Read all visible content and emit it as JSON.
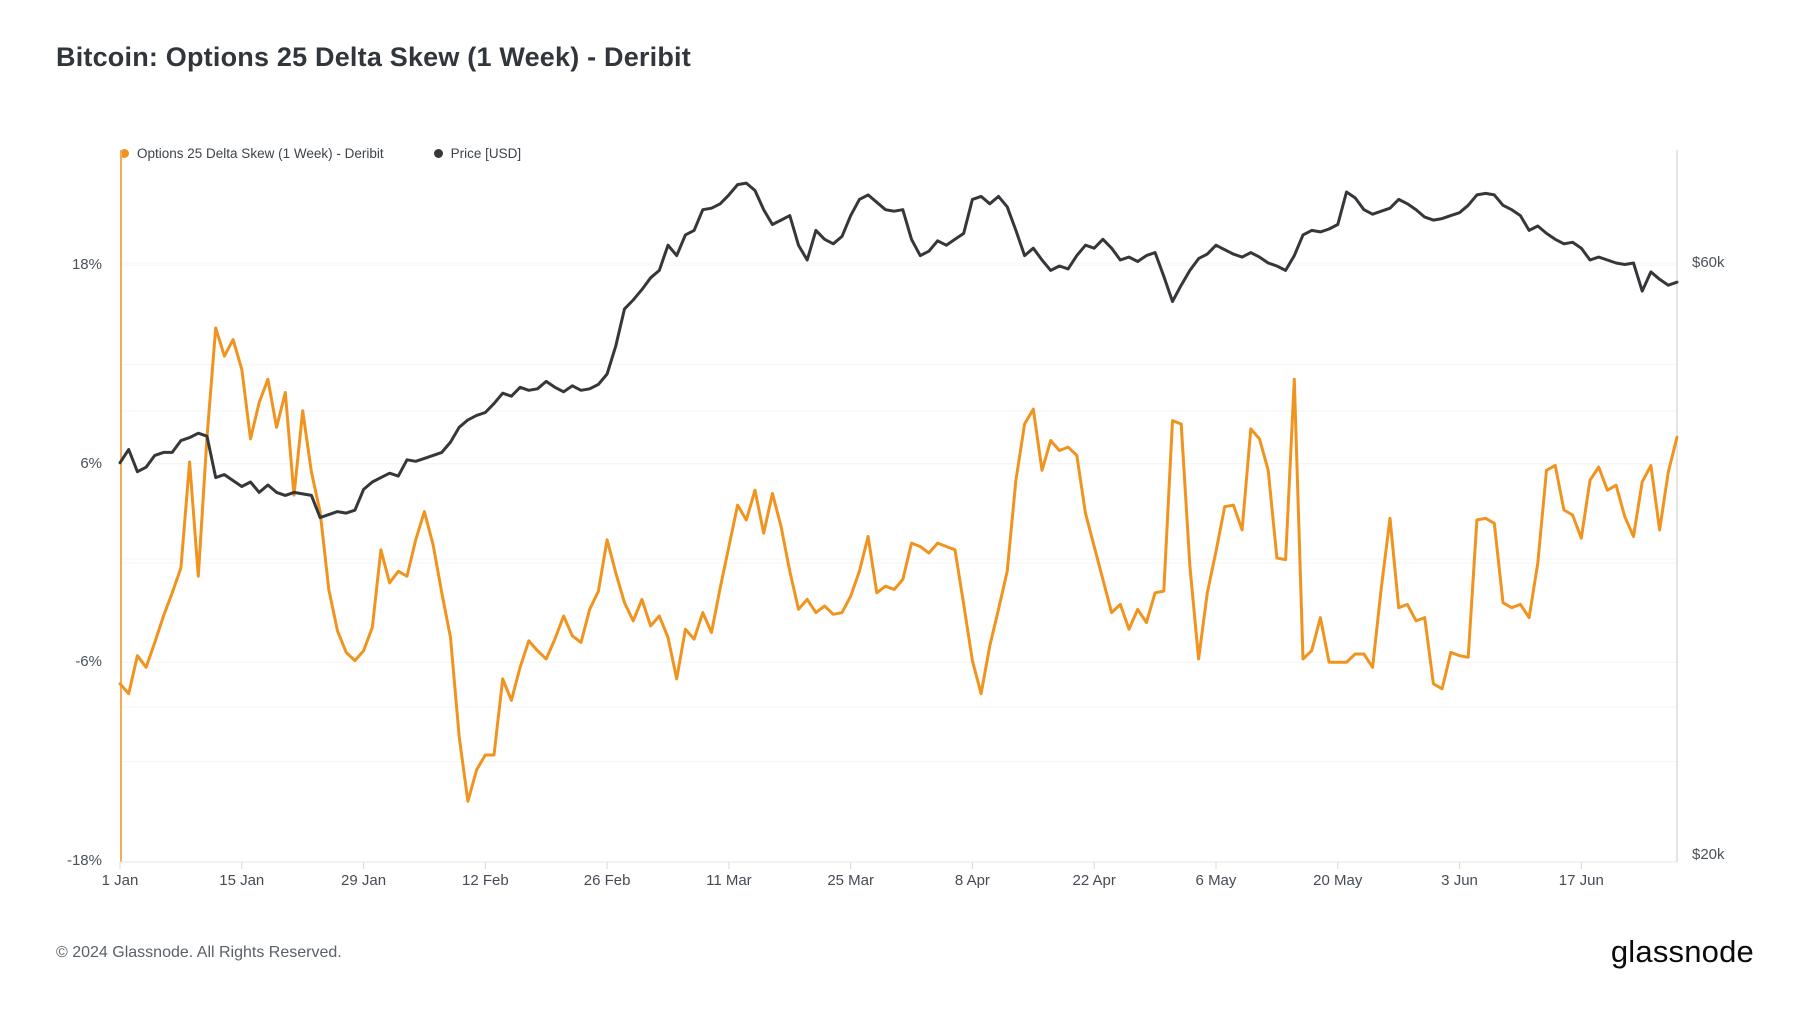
{
  "header": {
    "title": "Bitcoin: Options 25 Delta Skew (1 Week) - Deribit"
  },
  "legend": {
    "items": [
      {
        "label": "Options 25 Delta Skew (1 Week) - Deribit",
        "color": "#F0941F"
      },
      {
        "label": "Price [USD]",
        "color": "#35373B"
      }
    ]
  },
  "footer": {
    "copyright": "© 2024 Glassnode. All Rights Reserved.",
    "brand": "glassnode"
  },
  "colors": {
    "skew_line": "#F0941F",
    "price_line": "#35373B",
    "left_axis_line": "#F5A959",
    "right_axis_line": "#CBCBD1",
    "bottom_axis_line": "#E7E7EB",
    "tick_mark": "#D9D9DE",
    "gridline": "#F4F4F6",
    "background": "#FFFFFF"
  },
  "chart_data": {
    "type": "line",
    "title": "Bitcoin: Options 25 Delta Skew (1 Week) - Deribit",
    "cadence": "daily",
    "start_date": "1 Jan 2024",
    "end_date": "28 Jun 2024",
    "grid": true,
    "legend_position": "top-left",
    "x_ticks": {
      "labels": [
        "1 Jan",
        "15 Jan",
        "29 Jan",
        "12 Feb",
        "26 Feb",
        "11 Mar",
        "25 Mar",
        "8 Apr",
        "22 Apr",
        "6 May",
        "20 May",
        "3 Jun",
        "17 Jun"
      ],
      "day_indices": [
        0,
        14,
        28,
        42,
        56,
        70,
        84,
        98,
        112,
        126,
        140,
        154,
        168
      ]
    },
    "left_axis": {
      "unit": "%",
      "tick_labels": [
        "18%",
        "6%",
        "-6%",
        "-18%"
      ],
      "tick_values": [
        18,
        6,
        -6,
        -18
      ],
      "gridline_values": [
        18,
        12,
        6,
        0,
        -6,
        -12
      ],
      "range": [
        -18,
        18
      ]
    },
    "right_axis": {
      "unit": "USD",
      "tick_labels": [
        "$60k",
        "$20k"
      ],
      "tick_values": [
        60,
        20
      ],
      "gridline_values": [
        60,
        50,
        40,
        30
      ],
      "range": [
        20,
        68
      ]
    },
    "series": [
      {
        "name": "Options 25 Delta Skew (1 Week) - Deribit",
        "color": "#F0941F",
        "axis": "left",
        "unit": "percent",
        "values": [
          -7.3,
          -7.9,
          -5.6,
          -6.3,
          -4.8,
          -3.2,
          -1.8,
          -0.3,
          6.1,
          -0.8,
          7.6,
          14.2,
          12.5,
          13.5,
          11.7,
          7.5,
          9.7,
          11.1,
          8.2,
          10.3,
          4.1,
          9.2,
          5.5,
          3.1,
          -1.6,
          -4.1,
          -5.4,
          -5.9,
          -5.3,
          -3.9,
          0.8,
          -1.2,
          -0.5,
          -0.8,
          1.4,
          3.1,
          1.1,
          -1.8,
          -4.5,
          -10.5,
          -14.4,
          -12.5,
          -11.6,
          -11.6,
          -7.0,
          -8.3,
          -6.3,
          -4.7,
          -5.3,
          -5.8,
          -4.6,
          -3.2,
          -4.4,
          -4.8,
          -2.8,
          -1.7,
          1.4,
          -0.6,
          -2.4,
          -3.5,
          -2.2,
          -3.8,
          -3.2,
          -4.5,
          -7.0,
          -4.0,
          -4.6,
          -3.0,
          -4.2,
          -1.5,
          1.0,
          3.5,
          2.6,
          4.4,
          1.8,
          4.2,
          2.2,
          -0.5,
          -2.8,
          -2.2,
          -3.0,
          -2.6,
          -3.1,
          -3.0,
          -2.0,
          -0.5,
          1.6,
          -1.8,
          -1.4,
          -1.6,
          -1.0,
          1.2,
          1.0,
          0.6,
          1.2,
          1.0,
          0.8,
          -2.5,
          -5.9,
          -7.9,
          -5.0,
          -2.8,
          -0.5,
          5.0,
          8.4,
          9.3,
          5.6,
          7.4,
          6.8,
          7.0,
          6.5,
          3.0,
          1.0,
          -1.0,
          -3.0,
          -2.5,
          -4.0,
          -2.8,
          -3.6,
          -1.8,
          -1.7,
          8.6,
          8.4,
          -0.2,
          -5.8,
          -1.8,
          0.7,
          3.4,
          3.5,
          2.0,
          8.1,
          7.5,
          5.6,
          0.3,
          0.2,
          11.1,
          -5.8,
          -5.3,
          -3.3,
          -6.0,
          -6.0,
          -6.0,
          -5.5,
          -5.5,
          -6.3,
          -1.5,
          2.7,
          -2.7,
          -2.5,
          -3.5,
          -3.3,
          -7.3,
          -7.6,
          -5.4,
          -5.6,
          -5.7,
          2.6,
          2.7,
          2.4,
          -2.4,
          -2.7,
          -2.5,
          -3.3,
          0.0,
          5.6,
          5.9,
          3.2,
          2.9,
          1.5,
          5.0,
          5.8,
          4.4,
          4.7,
          2.8,
          1.6,
          4.9,
          5.9,
          2.0,
          5.5,
          7.6
        ]
      },
      {
        "name": "Price [USD]",
        "color": "#35373B",
        "axis": "right",
        "unit": "thousand USD",
        "values": [
          46.5,
          47.4,
          45.9,
          46.2,
          47.0,
          47.2,
          47.2,
          48.0,
          48.2,
          48.5,
          48.3,
          45.5,
          45.7,
          45.3,
          44.9,
          45.2,
          44.5,
          45.0,
          44.5,
          44.3,
          44.5,
          44.4,
          44.3,
          42.8,
          43.0,
          43.2,
          43.1,
          43.3,
          44.7,
          45.2,
          45.5,
          45.8,
          45.6,
          46.7,
          46.6,
          46.8,
          47.0,
          47.2,
          47.9,
          48.9,
          49.4,
          49.7,
          49.9,
          50.5,
          51.2,
          51.0,
          51.6,
          51.4,
          51.5,
          52.0,
          51.6,
          51.3,
          51.7,
          51.4,
          51.5,
          51.8,
          52.5,
          54.4,
          56.9,
          57.5,
          58.2,
          59.0,
          59.5,
          61.2,
          60.5,
          61.9,
          62.2,
          63.6,
          63.7,
          64.0,
          64.6,
          65.3,
          65.4,
          64.9,
          63.6,
          62.6,
          62.9,
          63.2,
          61.2,
          60.2,
          62.2,
          61.6,
          61.3,
          61.8,
          63.2,
          64.3,
          64.6,
          64.1,
          63.6,
          63.5,
          63.6,
          61.6,
          60.5,
          60.8,
          61.5,
          61.2,
          61.6,
          62.0,
          64.3,
          64.5,
          64.0,
          64.5,
          63.8,
          62.2,
          60.5,
          61.0,
          60.2,
          59.5,
          59.8,
          59.6,
          60.5,
          61.2,
          61.0,
          61.6,
          61.0,
          60.2,
          60.4,
          60.1,
          60.5,
          60.7,
          59.1,
          57.4,
          58.5,
          59.5,
          60.3,
          60.6,
          61.2,
          60.9,
          60.6,
          60.4,
          60.7,
          60.4,
          60.0,
          59.8,
          59.5,
          60.5,
          61.9,
          62.2,
          62.1,
          62.3,
          62.6,
          64.8,
          64.4,
          63.6,
          63.3,
          63.5,
          63.7,
          64.3,
          64.0,
          63.6,
          63.1,
          62.9,
          63.0,
          63.2,
          63.4,
          63.9,
          64.6,
          64.7,
          64.6,
          63.9,
          63.6,
          63.2,
          62.2,
          62.5,
          62.0,
          61.6,
          61.3,
          61.4,
          61.0,
          60.2,
          60.4,
          60.2,
          60.0,
          59.9,
          60.0,
          58.1,
          59.4,
          58.9,
          58.5,
          58.7
        ]
      }
    ]
  }
}
